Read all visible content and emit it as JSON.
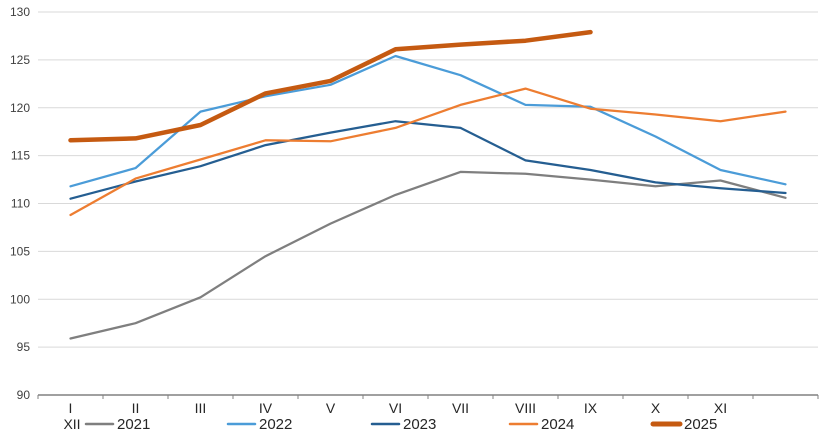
{
  "chart_data": {
    "type": "line",
    "title": "",
    "xlabel": "",
    "ylabel": "",
    "categories": [
      "I",
      "II",
      "III",
      "IV",
      "V",
      "VI",
      "VII",
      "VIII",
      "IX",
      "X",
      "XI",
      "XII"
    ],
    "wrapped_last_category_label": "XII",
    "series": [
      {
        "name": "2021",
        "color": "#7F7F7F",
        "thick": false,
        "values": [
          95.9,
          97.5,
          100.2,
          104.5,
          107.9,
          110.9,
          113.3,
          113.1,
          112.5,
          111.8,
          112.4,
          110.6
        ]
      },
      {
        "name": "2022",
        "color": "#4B9CD8",
        "thick": false,
        "values": [
          111.8,
          113.7,
          119.6,
          121.2,
          122.4,
          125.4,
          123.4,
          120.3,
          120.1,
          117.0,
          113.5,
          112.0
        ]
      },
      {
        "name": "2023",
        "color": "#255E91",
        "thick": false,
        "values": [
          110.5,
          112.3,
          113.9,
          116.1,
          117.4,
          118.6,
          117.9,
          114.5,
          113.5,
          112.2,
          111.6,
          111.1
        ]
      },
      {
        "name": "2024",
        "color": "#ED7D31",
        "thick": false,
        "values": [
          108.8,
          112.6,
          114.6,
          116.6,
          116.5,
          117.9,
          120.3,
          122.0,
          119.9,
          119.3,
          118.6,
          119.6
        ]
      },
      {
        "name": "2025",
        "color": "#C55A11",
        "thick": true,
        "values": [
          116.6,
          116.8,
          118.2,
          121.5,
          122.8,
          126.1,
          126.6,
          127.0,
          127.9
        ]
      }
    ],
    "ylim": [
      90,
      130
    ],
    "ytick_step": 5,
    "ytick_labels": [
      "90",
      "95",
      "100",
      "105",
      "110",
      "115",
      "120",
      "125",
      "130"
    ],
    "grid": true,
    "legend_position": "bottom",
    "legend_entries": [
      "2021",
      "2022",
      "2023",
      "2024",
      "2025"
    ],
    "style": {
      "grid_color": "#D9D9D9",
      "axis_color": "#808080",
      "ytick_label_color": "#404040",
      "xtick_label_color": "#262626",
      "legend_text_color": "#262626",
      "background": "#FFFFFF"
    }
  }
}
